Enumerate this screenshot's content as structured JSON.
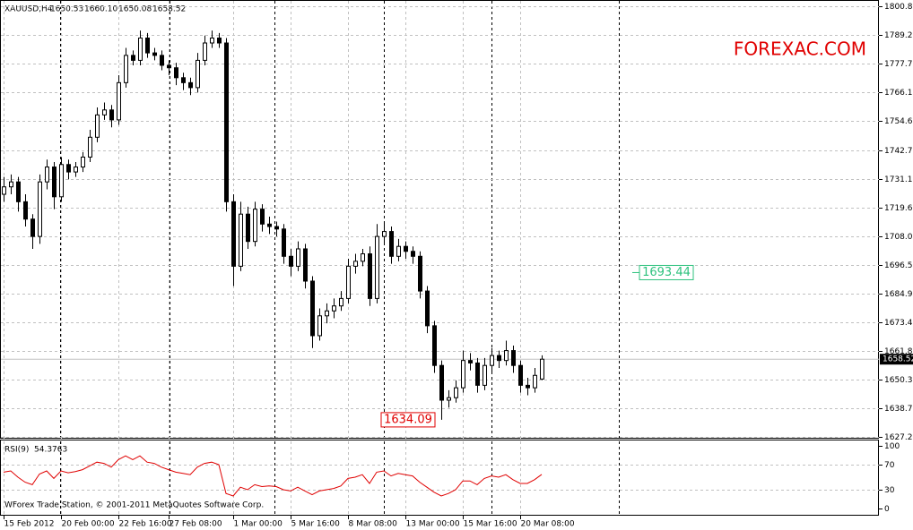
{
  "chart_data": [
    {
      "type": "candlestick",
      "title": "XAUUSD,H4",
      "last_bar_labels": [
        "1650.53",
        "1660.10",
        "1650.08",
        "1658.52"
      ],
      "watermark": "FOREXAC.COM",
      "categories": [
        "15 Feb 2012",
        null,
        null,
        null,
        null,
        null,
        null,
        null,
        "20 Feb 00:00",
        null,
        null,
        null,
        null,
        null,
        null,
        null,
        "22 Feb 16:00",
        null,
        null,
        null,
        null,
        null,
        null,
        "27 Feb 08:00",
        null,
        null,
        null,
        null,
        null,
        null,
        null,
        null,
        "1 Mar 00:00",
        null,
        null,
        null,
        null,
        null,
        null,
        null,
        "5 Mar 16:00",
        null,
        null,
        null,
        null,
        null,
        null,
        null,
        "8 Mar 08:00",
        null,
        null,
        null,
        null,
        null,
        null,
        null,
        "13 Mar 00:00",
        null,
        null,
        null,
        null,
        null,
        null,
        null,
        "15 Mar 16:00",
        null,
        null,
        null,
        null,
        null,
        null,
        null,
        "20 Mar 08:00",
        null,
        null,
        null
      ],
      "open": [
        1725,
        1728,
        1730,
        1722,
        1715,
        1708,
        1730,
        1736,
        1724,
        1737,
        1734,
        1736,
        1740,
        1748,
        1757,
        1759,
        1755,
        1770,
        1781,
        1779,
        1788,
        1782,
        1781,
        1777,
        1776,
        1772,
        1770,
        1768,
        1779,
        1786,
        1788,
        1786,
        1722,
        1696,
        1717,
        1706,
        1719,
        1713,
        1712,
        1711,
        1700,
        1696,
        1703,
        1690,
        1668,
        1676,
        1678,
        1680,
        1683,
        1696,
        1698,
        1701,
        1683,
        1708,
        1710,
        1700,
        1704,
        1702,
        1700,
        1686,
        1672,
        1656,
        1642,
        1643,
        1647,
        1658,
        1657,
        1648,
        1656,
        1660,
        1658,
        1662,
        1656,
        1648,
        1647,
        1650.53
      ],
      "high": [
        1732,
        1733,
        1732,
        1725,
        1717,
        1733,
        1739,
        1738,
        1740,
        1739,
        1738,
        1742,
        1751,
        1760,
        1762,
        1761,
        1773,
        1784,
        1783,
        1791,
        1790,
        1784,
        1783,
        1779,
        1778,
        1774,
        1772,
        1782,
        1789,
        1791,
        1790,
        1788,
        1725,
        1722,
        1720,
        1722,
        1721,
        1716,
        1714,
        1713,
        1703,
        1706,
        1705,
        1692,
        1679,
        1681,
        1683,
        1686,
        1699,
        1701,
        1703,
        1704,
        1713,
        1714,
        1712,
        1707,
        1706,
        1704,
        1702,
        1688,
        1674,
        1658,
        1646,
        1650,
        1662,
        1661,
        1659,
        1659,
        1663,
        1662,
        1666,
        1664,
        1658,
        1651,
        1655,
        1660.1
      ],
      "low": [
        1722,
        1725,
        1718,
        1712,
        1703,
        1705,
        1727,
        1719,
        1722,
        1731,
        1732,
        1734,
        1738,
        1746,
        1755,
        1752,
        1753,
        1768,
        1777,
        1777,
        1780,
        1779,
        1775,
        1773,
        1769,
        1767,
        1765,
        1766,
        1777,
        1784,
        1784,
        1718,
        1688,
        1694,
        1703,
        1704,
        1710,
        1709,
        1708,
        1697,
        1692,
        1694,
        1687,
        1663,
        1666,
        1673,
        1675,
        1678,
        1681,
        1693,
        1696,
        1680,
        1681,
        1705,
        1697,
        1698,
        1699,
        1697,
        1683,
        1669,
        1653,
        1634.09,
        1639,
        1641,
        1645,
        1654,
        1645,
        1646,
        1653,
        1655,
        1656,
        1653,
        1645,
        1644,
        1645,
        1650.08
      ],
      "close": [
        1728,
        1730,
        1722,
        1715,
        1708,
        1730,
        1736,
        1724,
        1737,
        1734,
        1736,
        1740,
        1748,
        1757,
        1759,
        1755,
        1770,
        1781,
        1779,
        1788,
        1782,
        1781,
        1777,
        1776,
        1772,
        1770,
        1768,
        1779,
        1786,
        1788,
        1786,
        1722,
        1696,
        1717,
        1706,
        1719,
        1713,
        1712,
        1711,
        1700,
        1696,
        1703,
        1690,
        1668,
        1676,
        1678,
        1680,
        1683,
        1696,
        1698,
        1701,
        1683,
        1708,
        1710,
        1700,
        1704,
        1702,
        1700,
        1686,
        1672,
        1656,
        1642,
        1643,
        1647,
        1658,
        1657,
        1648,
        1656,
        1660,
        1658,
        1662,
        1656,
        1648,
        1647,
        1652,
        1658.52
      ],
      "up_color": "#ffffff",
      "down_color": "#000000",
      "edge_color": "#000000",
      "ylim": [
        1627.2,
        1800.8
      ],
      "yticks": [
        {
          "value": 1800.8,
          "label": "1800.80"
        },
        1789.25,
        {
          "value": 1777.7,
          "label": "1777.70"
        },
        1766.15,
        {
          "value": 1754.6,
          "label": "1754.60"
        },
        {
          "value": 1742.7,
          "label": "1742.70"
        },
        1731.15,
        {
          "value": 1719.6,
          "label": "1719.60"
        },
        1708.05,
        {
          "value": 1696.5,
          "label": "1696.50"
        },
        1684.95,
        {
          "value": 1673.4,
          "label": "1673.40"
        },
        1661.85,
        {
          "value": 1650.3,
          "label": "1650.30"
        },
        1638.75,
        {
          "value": 1627.2,
          "label": "1627.20"
        }
      ],
      "current_price": 1658.52,
      "annotations": [
        {
          "value": 1634.09,
          "color": "#e00000"
        },
        {
          "value": 1693.44,
          "color": "#2ec27e"
        }
      ],
      "grid": true
    },
    {
      "type": "line",
      "title": "RSI(9)",
      "color": "#e00000",
      "values": [
        58,
        60,
        50,
        42,
        38,
        55,
        60,
        48,
        60,
        57,
        59,
        62,
        68,
        74,
        72,
        66,
        78,
        84,
        78,
        84,
        74,
        72,
        66,
        62,
        58,
        56,
        54,
        66,
        72,
        74,
        70,
        24,
        20,
        34,
        30,
        38,
        35,
        36,
        35,
        30,
        28,
        34,
        28,
        22,
        28,
        30,
        32,
        36,
        48,
        50,
        54,
        40,
        58,
        60,
        52,
        56,
        54,
        52,
        42,
        34,
        26,
        20,
        24,
        30,
        44,
        44,
        38,
        48,
        52,
        50,
        54,
        46,
        40,
        40,
        46,
        54.3763
      ],
      "ylim": [
        0,
        100
      ],
      "yticks": [
        0,
        30,
        70,
        100
      ],
      "footer": "WForex Trade Station, © 2001-2011 MetaQuotes Software Corp."
    }
  ]
}
